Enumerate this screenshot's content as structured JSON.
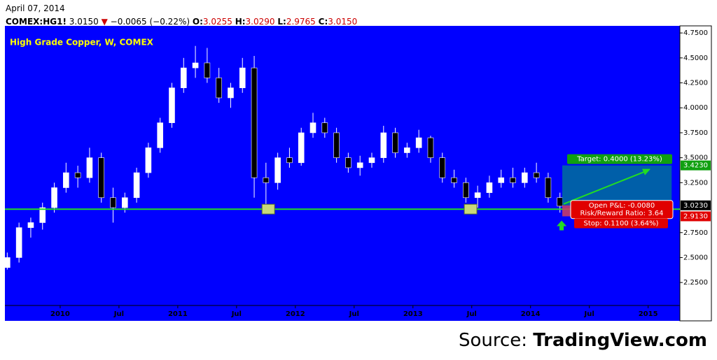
{
  "header": {
    "date": "April 07, 2014",
    "symbol": "COMEX:HG1!",
    "last": "3.0150",
    "change": "−0.0065 (−0.22%)",
    "o_label": "O:",
    "o": "3.0255",
    "h_label": "H:",
    "h": "3.0290",
    "l_label": "L:",
    "l": "2.9765",
    "c_label": "C:",
    "c": "3.0150"
  },
  "chart_data": {
    "type": "candlestick",
    "title": "High Grade Copper, W, COMEX",
    "background": "#0000ff",
    "up_color": "#ffffff",
    "down_color": "#000000",
    "x": [
      2009.55,
      2009.65,
      2009.75,
      2009.85,
      2009.95,
      2010.05,
      2010.15,
      2010.25,
      2010.35,
      2010.45,
      2010.55,
      2010.65,
      2010.75,
      2010.85,
      2010.95,
      2011.05,
      2011.15,
      2011.25,
      2011.35,
      2011.45,
      2011.55,
      2011.65,
      2011.75,
      2011.85,
      2011.95,
      2012.05,
      2012.15,
      2012.25,
      2012.35,
      2012.45,
      2012.55,
      2012.65,
      2012.75,
      2012.85,
      2012.95,
      2013.05,
      2013.15,
      2013.25,
      2013.35,
      2013.45,
      2013.55,
      2013.65,
      2013.75,
      2013.85,
      2013.95,
      2014.05,
      2014.15,
      2014.25
    ],
    "open": [
      2.4,
      2.5,
      2.8,
      2.85,
      3.0,
      3.2,
      3.35,
      3.3,
      3.5,
      3.1,
      3.0,
      3.1,
      3.35,
      3.6,
      3.85,
      4.2,
      4.4,
      4.45,
      4.3,
      4.1,
      4.2,
      4.4,
      3.3,
      3.25,
      3.5,
      3.45,
      3.75,
      3.85,
      3.75,
      3.5,
      3.4,
      3.45,
      3.5,
      3.75,
      3.55,
      3.6,
      3.7,
      3.5,
      3.3,
      3.25,
      3.1,
      3.15,
      3.25,
      3.3,
      3.25,
      3.35,
      3.3,
      3.1
    ],
    "high": [
      2.55,
      2.85,
      2.9,
      3.05,
      3.25,
      3.45,
      3.42,
      3.6,
      3.55,
      3.2,
      3.15,
      3.4,
      3.65,
      3.9,
      4.25,
      4.5,
      4.62,
      4.6,
      4.4,
      4.25,
      4.5,
      4.52,
      3.45,
      3.55,
      3.6,
      3.8,
      3.95,
      3.9,
      3.8,
      3.55,
      3.52,
      3.55,
      3.82,
      3.8,
      3.65,
      3.78,
      3.72,
      3.55,
      3.38,
      3.3,
      3.22,
      3.32,
      3.38,
      3.4,
      3.4,
      3.45,
      3.35,
      3.15
    ],
    "low": [
      2.38,
      2.45,
      2.7,
      2.78,
      2.95,
      3.15,
      3.2,
      3.25,
      3.05,
      2.85,
      2.95,
      3.05,
      3.3,
      3.55,
      3.8,
      4.15,
      4.3,
      4.25,
      4.05,
      4.0,
      4.15,
      3.1,
      3.0,
      3.18,
      3.4,
      3.42,
      3.7,
      3.7,
      3.45,
      3.35,
      3.32,
      3.4,
      3.45,
      3.5,
      3.5,
      3.55,
      3.45,
      3.25,
      3.2,
      3.05,
      3.0,
      3.1,
      3.2,
      3.2,
      3.2,
      3.25,
      3.05,
      2.95
    ],
    "close": [
      2.5,
      2.8,
      2.85,
      3.0,
      3.2,
      3.35,
      3.3,
      3.5,
      3.1,
      3.0,
      3.1,
      3.35,
      3.6,
      3.85,
      4.2,
      4.4,
      4.45,
      4.3,
      4.1,
      4.2,
      4.4,
      3.3,
      3.25,
      3.5,
      3.45,
      3.75,
      3.85,
      3.75,
      3.5,
      3.4,
      3.45,
      3.5,
      3.75,
      3.55,
      3.6,
      3.7,
      3.5,
      3.3,
      3.25,
      3.1,
      3.15,
      3.25,
      3.3,
      3.25,
      3.35,
      3.3,
      3.1,
      3.015
    ],
    "xlim": [
      2009.53,
      2015.27
    ],
    "xticks": [
      {
        "value": 2010,
        "label": "2010"
      },
      {
        "value": 2010.5,
        "label": "Jul"
      },
      {
        "value": 2011,
        "label": "2011"
      },
      {
        "value": 2011.5,
        "label": "Jul"
      },
      {
        "value": 2012,
        "label": "2012"
      },
      {
        "value": 2012.5,
        "label": "Jul"
      },
      {
        "value": 2013,
        "label": "2013"
      },
      {
        "value": 2013.5,
        "label": "Jul"
      },
      {
        "value": 2014,
        "label": "2014"
      },
      {
        "value": 2014.5,
        "label": "Jul"
      },
      {
        "value": 2015,
        "label": "2015"
      }
    ],
    "ylim": [
      2.02,
      4.8
    ],
    "yticks": [
      {
        "value": 4.75,
        "label": "4.7500"
      },
      {
        "value": 4.5,
        "label": "4.5000"
      },
      {
        "value": 4.25,
        "label": "4.2500"
      },
      {
        "value": 4,
        "label": "4.0000"
      },
      {
        "value": 3.75,
        "label": "3.7500"
      },
      {
        "value": 3.5,
        "label": "3.5000"
      },
      {
        "value": 3.25,
        "label": "3.2500"
      },
      {
        "value": 2.75,
        "label": "2.7500"
      },
      {
        "value": 2.5,
        "label": "2.5000"
      },
      {
        "value": 2.25,
        "label": "2.2500"
      }
    ],
    "support_line": 2.985,
    "support_points_x": [
      2011.77,
      2013.49
    ],
    "position": {
      "start_x": 2014.27,
      "end_x": 2015.2,
      "target": {
        "value": 3.423,
        "label": "3.4230"
      },
      "entry": {
        "value": 3.023,
        "label": "3.0230"
      },
      "stop": {
        "value": 2.913,
        "label": "2.9130"
      },
      "target_text": "Target: 0.4000 (13.23%)",
      "pnl_text": "Open P&L: -0.0080",
      "rr_text": "Risk/Reward Ratio: 3.64",
      "stop_text": "Stop: 0.1100 (3.64%)"
    }
  },
  "source": {
    "label": "Source:",
    "name": "TradingView.com"
  }
}
